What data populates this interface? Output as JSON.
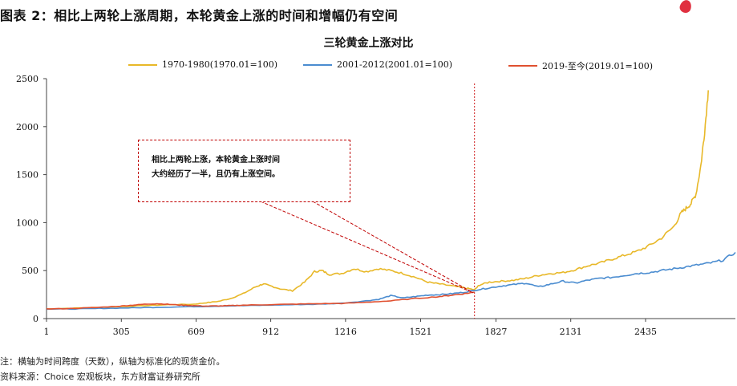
{
  "figure_title": "图表 2：相比上两轮上涨周期，本轮黄金上涨的时间和增幅仍有空间",
  "chart_data": {
    "type": "line",
    "title": "三轮黄金上涨对比",
    "xlabel": "",
    "ylabel": "",
    "xlim": [
      1,
      2800
    ],
    "ylim": [
      0,
      2500
    ],
    "x_ticks": [
      "1",
      "305",
      "609",
      "912",
      "1216",
      "1521",
      "1827",
      "2131",
      "2435"
    ],
    "y_ticks": [
      "0",
      "500",
      "1000",
      "1500",
      "2000",
      "2500"
    ],
    "grid": false,
    "legend_position": "top",
    "series": [
      {
        "name": "1970-1980(1970.01=100)",
        "color": "#e8b828",
        "points": [
          [
            1,
            100
          ],
          [
            100,
            108
          ],
          [
            200,
            115
          ],
          [
            300,
            125
          ],
          [
            400,
            135
          ],
          [
            500,
            145
          ],
          [
            600,
            150
          ],
          [
            650,
            165
          ],
          [
            700,
            180
          ],
          [
            750,
            210
          ],
          [
            800,
            260
          ],
          [
            850,
            330
          ],
          [
            880,
            360
          ],
          [
            900,
            350
          ],
          [
            950,
            310
          ],
          [
            1000,
            290
          ],
          [
            1050,
            380
          ],
          [
            1090,
            490
          ],
          [
            1120,
            500
          ],
          [
            1150,
            460
          ],
          [
            1200,
            470
          ],
          [
            1250,
            520
          ],
          [
            1300,
            490
          ],
          [
            1350,
            520
          ],
          [
            1400,
            500
          ],
          [
            1450,
            470
          ],
          [
            1500,
            430
          ],
          [
            1550,
            380
          ],
          [
            1600,
            360
          ],
          [
            1650,
            340
          ],
          [
            1700,
            320
          ],
          [
            1740,
            300
          ],
          [
            1760,
            350
          ],
          [
            1800,
            380
          ],
          [
            1850,
            390
          ],
          [
            1900,
            400
          ],
          [
            1950,
            420
          ],
          [
            2000,
            450
          ],
          [
            2050,
            470
          ],
          [
            2100,
            480
          ],
          [
            2150,
            510
          ],
          [
            2200,
            550
          ],
          [
            2250,
            580
          ],
          [
            2300,
            620
          ],
          [
            2350,
            660
          ],
          [
            2400,
            700
          ],
          [
            2450,
            760
          ],
          [
            2500,
            840
          ],
          [
            2550,
            960
          ],
          [
            2580,
            1100
          ],
          [
            2600,
            1150
          ],
          [
            2620,
            1200
          ],
          [
            2640,
            1300
          ],
          [
            2660,
            1600
          ],
          [
            2675,
            1950
          ],
          [
            2690,
            2380
          ]
        ]
      },
      {
        "name": "2001-2012(2001.01=100)",
        "color": "#4a8cd0",
        "points": [
          [
            1,
            100
          ],
          [
            100,
            100
          ],
          [
            200,
            105
          ],
          [
            300,
            110
          ],
          [
            400,
            115
          ],
          [
            500,
            120
          ],
          [
            600,
            125
          ],
          [
            700,
            130
          ],
          [
            800,
            135
          ],
          [
            900,
            140
          ],
          [
            1000,
            145
          ],
          [
            1100,
            150
          ],
          [
            1200,
            160
          ],
          [
            1300,
            185
          ],
          [
            1350,
            200
          ],
          [
            1400,
            240
          ],
          [
            1450,
            215
          ],
          [
            1500,
            230
          ],
          [
            1550,
            245
          ],
          [
            1600,
            250
          ],
          [
            1650,
            260
          ],
          [
            1700,
            275
          ],
          [
            1750,
            300
          ],
          [
            1800,
            320
          ],
          [
            1850,
            340
          ],
          [
            1900,
            355
          ],
          [
            1950,
            370
          ],
          [
            2000,
            330
          ],
          [
            2050,
            360
          ],
          [
            2100,
            390
          ],
          [
            2150,
            370
          ],
          [
            2200,
            400
          ],
          [
            2250,
            420
          ],
          [
            2300,
            430
          ],
          [
            2350,
            450
          ],
          [
            2400,
            470
          ],
          [
            2450,
            480
          ],
          [
            2500,
            500
          ],
          [
            2550,
            520
          ],
          [
            2600,
            540
          ],
          [
            2650,
            560
          ],
          [
            2700,
            580
          ],
          [
            2750,
            610
          ],
          [
            2800,
            690
          ]
        ]
      },
      {
        "name": "2019-至今(2019.01=100)",
        "color": "#e05030",
        "points": [
          [
            1,
            100
          ],
          [
            100,
            105
          ],
          [
            200,
            115
          ],
          [
            300,
            130
          ],
          [
            350,
            140
          ],
          [
            400,
            150
          ],
          [
            450,
            155
          ],
          [
            500,
            148
          ],
          [
            550,
            140
          ],
          [
            600,
            135
          ],
          [
            650,
            130
          ],
          [
            700,
            132
          ],
          [
            750,
            135
          ],
          [
            800,
            140
          ],
          [
            900,
            145
          ],
          [
            1000,
            150
          ],
          [
            1100,
            155
          ],
          [
            1200,
            158
          ],
          [
            1300,
            170
          ],
          [
            1400,
            185
          ],
          [
            1500,
            210
          ],
          [
            1600,
            230
          ],
          [
            1650,
            245
          ],
          [
            1700,
            260
          ],
          [
            1740,
            275
          ]
        ]
      }
    ],
    "vertical_marker_x": 1740
  },
  "annotation": {
    "line1": "相比上两轮上涨，本轮黄金上涨时间",
    "line2": "大约经历了一半，且仍有上涨空间。"
  },
  "notes": {
    "note": "注：横轴为时间跨度（天数），纵轴为标准化的现货金价。",
    "source": "资料来源：Choice 宏观板块，东方财富证券研究所"
  }
}
